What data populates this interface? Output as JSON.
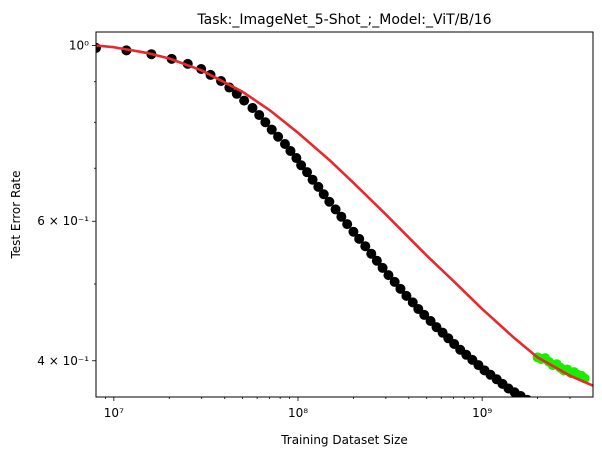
{
  "chart_data": {
    "type": "scatter",
    "title": "Task:_ImageNet_5-Shot_;_Model:_ViT/B/16",
    "xlabel": "Training Dataset Size",
    "ylabel": "Test Error Rate",
    "xscale": "log",
    "yscale": "log",
    "xlim": [
      8000000,
      4000000000
    ],
    "ylim": [
      0.36,
      1.04
    ],
    "grid": false,
    "legend": "none",
    "x_ticks": [
      {
        "value": 10000000,
        "label": "10⁷"
      },
      {
        "value": 100000000,
        "label": "10⁸"
      },
      {
        "value": 1000000000,
        "label": "10⁹"
      }
    ],
    "y_ticks": [
      {
        "value": 0.4,
        "label": "4 × 10⁻¹"
      },
      {
        "value": 0.6,
        "label": "6 × 10⁻¹"
      },
      {
        "value": 1.0,
        "label": "10⁰"
      }
    ],
    "colors": {
      "train_points": "#000000",
      "test_points": "#1aee00",
      "fit_line": "#e8282c"
    },
    "series": [
      {
        "role": "train_points",
        "marker": "circle",
        "x": [
          8000000,
          11700000,
          16000000,
          20600000,
          25200000,
          29800000,
          33500000,
          38200000,
          42400000,
          46500000,
          51000000,
          56600000,
          61600000,
          66500000,
          72000000,
          78000000,
          85000000,
          91000000,
          98000000,
          104000000,
          112000000,
          120000000,
          129000000,
          138000000,
          148000000,
          160000000,
          172000000,
          185000000,
          200000000,
          215000000,
          232000000,
          250000000,
          268000000,
          288000000,
          310000000,
          335000000,
          360000000,
          388000000,
          420000000,
          450000000,
          485000000,
          525000000,
          565000000,
          610000000,
          655000000,
          705000000,
          760000000,
          820000000,
          885000000,
          955000000,
          1030000000,
          1110000000,
          1200000000,
          1290000000,
          1390000000,
          1500000000,
          1620000000,
          1760000000,
          1900000000
        ],
        "y": [
          0.993,
          0.986,
          0.975,
          0.962,
          0.948,
          0.934,
          0.918,
          0.902,
          0.885,
          0.869,
          0.852,
          0.834,
          0.817,
          0.8,
          0.783,
          0.767,
          0.751,
          0.736,
          0.721,
          0.706,
          0.692,
          0.677,
          0.663,
          0.649,
          0.635,
          0.621,
          0.608,
          0.595,
          0.582,
          0.57,
          0.558,
          0.546,
          0.535,
          0.524,
          0.513,
          0.503,
          0.493,
          0.483,
          0.474,
          0.465,
          0.457,
          0.449,
          0.441,
          0.434,
          0.427,
          0.42,
          0.413,
          0.407,
          0.401,
          0.395,
          0.389,
          0.384,
          0.379,
          0.374,
          0.369,
          0.365,
          0.361,
          0.357,
          0.353
        ]
      },
      {
        "role": "test_points",
        "marker": "circle",
        "x": [
          2000000000,
          2100000000,
          2200000000,
          2300000000,
          2420000000,
          2540000000,
          2660000000,
          2780000000,
          2900000000,
          3030000000,
          3160000000,
          3300000000,
          3450000000,
          3600000000
        ],
        "y": [
          0.404,
          0.402,
          0.403,
          0.399,
          0.395,
          0.396,
          0.392,
          0.389,
          0.39,
          0.386,
          0.387,
          0.384,
          0.383,
          0.38
        ]
      },
      {
        "role": "fit_line",
        "marker": "none",
        "x": [
          8000000,
          10000000,
          15000000,
          20000000,
          30000000,
          50000000,
          70000000,
          100000000,
          150000000,
          200000000,
          300000000,
          500000000,
          700000000,
          1000000000,
          1500000000,
          2000000000,
          3000000000,
          4000000000
        ],
        "y": [
          1.0,
          0.995,
          0.979,
          0.963,
          0.93,
          0.874,
          0.829,
          0.776,
          0.715,
          0.671,
          0.612,
          0.543,
          0.504,
          0.465,
          0.427,
          0.404,
          0.383,
          0.372
        ]
      }
    ]
  }
}
